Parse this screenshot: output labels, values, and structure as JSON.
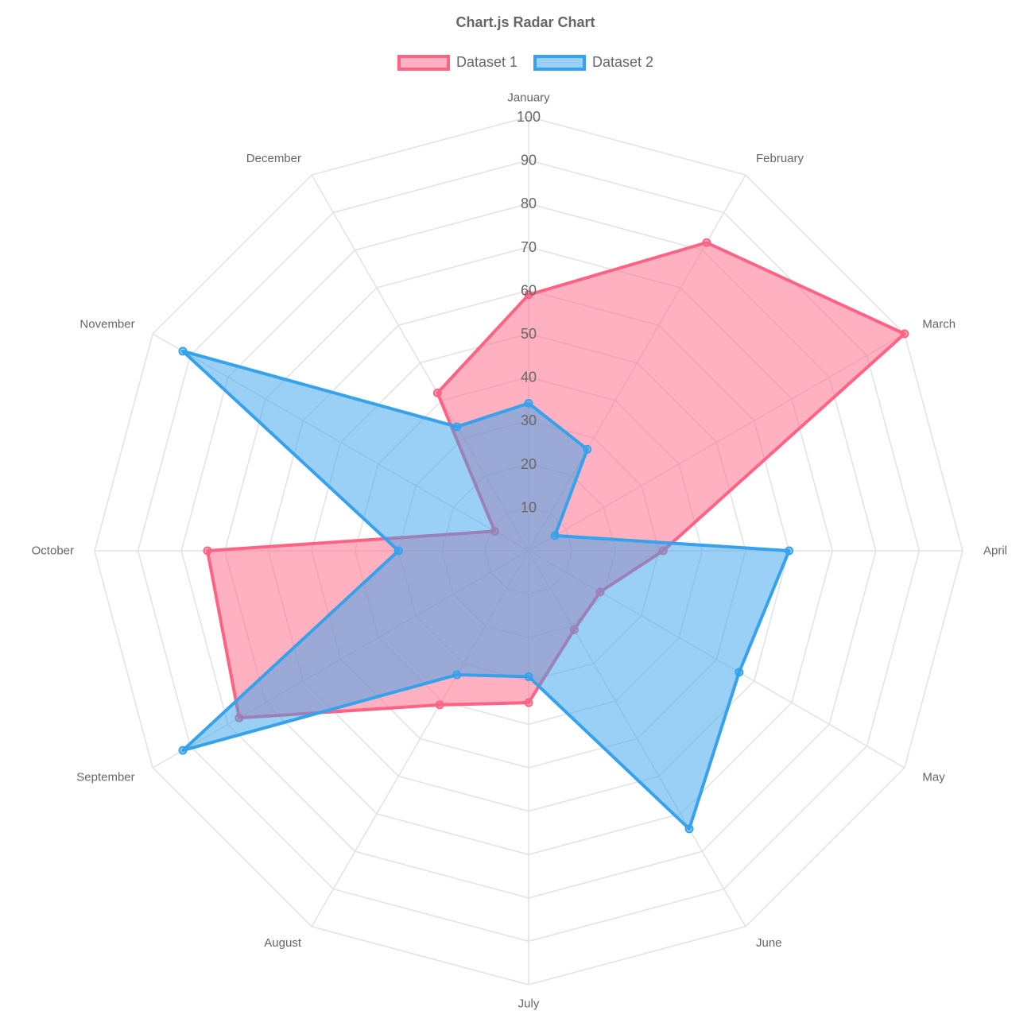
{
  "chart_data": {
    "type": "radar",
    "title": "Chart.js Radar Chart",
    "labels": [
      "January",
      "February",
      "March",
      "April",
      "May",
      "June",
      "July",
      "August",
      "September",
      "October",
      "November",
      "December"
    ],
    "r_range": [
      0,
      100
    ],
    "r_ticks": [
      "10",
      "20",
      "30",
      "40",
      "50",
      "60",
      "70",
      "80",
      "90",
      "100"
    ],
    "grid": true,
    "legend_position": "top",
    "series": [
      {
        "name": "Dataset 1",
        "values": [
          59,
          82,
          100,
          31,
          19,
          21,
          35,
          41,
          77,
          74,
          9,
          42
        ],
        "border_color": "#ff6384",
        "fill_color": "rgba(255,99,132,0.5)"
      },
      {
        "name": "Dataset 2",
        "values": [
          34,
          27,
          7,
          60,
          56,
          74,
          29,
          33,
          92,
          30,
          92,
          33
        ],
        "border_color": "#36a2eb",
        "fill_color": "rgba(54,162,235,0.5)"
      }
    ]
  }
}
